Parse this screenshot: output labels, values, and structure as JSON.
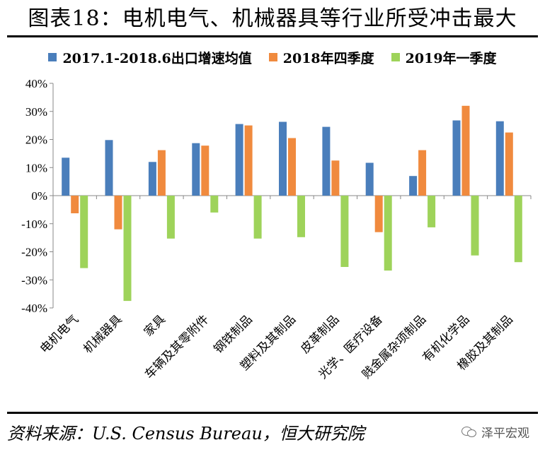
{
  "header": {
    "title": "图表18：电机电气、机械器具等行业所受冲击最大"
  },
  "footer": {
    "source": "资料来源：U.S. Census Bureau，恒大研究院",
    "watermark": "泽平宏观",
    "watermark_icon": "wechat-icon"
  },
  "colors": {
    "s1": "#4a7ebb",
    "s2": "#f08a3e",
    "s3": "#9ed35a"
  },
  "chart_data": {
    "type": "bar",
    "title": "",
    "xlabel": "",
    "ylabel": "",
    "ylim": [
      -40,
      40
    ],
    "yticks": [
      "40%",
      "30%",
      "20%",
      "10%",
      "0%",
      "-10%",
      "-20%",
      "-30%",
      "-40%"
    ],
    "yticks_values": [
      40,
      30,
      20,
      10,
      0,
      -10,
      -20,
      -30,
      -40
    ],
    "grid": false,
    "legend": "top",
    "categories": [
      "电机电气",
      "机械器具",
      "家具",
      "车辆及其零附件",
      "钢铁制品",
      "塑料及其制品",
      "皮革制品",
      "光学、医疗设备",
      "贱金属杂项制品",
      "有机化学品",
      "橡胶及其制品"
    ],
    "series": [
      {
        "name": "2017.1-2018.6出口增速均值",
        "color": "#4a7ebb",
        "values": [
          13.5,
          19.8,
          12.0,
          18.7,
          25.5,
          26.3,
          24.5,
          11.7,
          7.0,
          26.8,
          26.5
        ]
      },
      {
        "name": "2018年四季度",
        "color": "#f08a3e",
        "values": [
          -6.3,
          -12.0,
          16.2,
          17.8,
          25.0,
          20.5,
          12.5,
          -13.0,
          16.2,
          32.0,
          22.5
        ]
      },
      {
        "name": "2019年一季度",
        "color": "#9ed35a",
        "values": [
          -25.8,
          -37.5,
          -15.3,
          -6.0,
          -15.3,
          -14.8,
          -25.4,
          -26.7,
          -11.3,
          -21.3,
          -23.7
        ]
      }
    ]
  }
}
